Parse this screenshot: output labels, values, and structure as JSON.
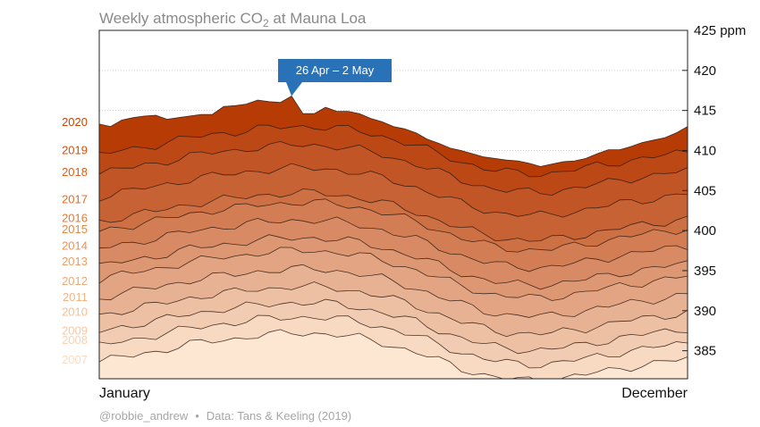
{
  "colors": {
    "callout": "#2a72b8",
    "grid": "#cfcfcf",
    "frame": "#222222",
    "title": "#8a8a8a",
    "credit": "#a6a6a6",
    "band_light": "#fde6d2",
    "band_dark": "#b73b05"
  },
  "credit": {
    "author": "@robbie_andrew",
    "separator": "•",
    "source": "Data: Tans & Keeling (2019)"
  },
  "callout": {
    "label": "26 Apr – 2 May",
    "week": 17,
    "value": 416.8
  },
  "chart_data": {
    "type": "area",
    "title_prefix": "Weekly atmospheric CO",
    "title_sub": "2",
    "title_suffix": " at Mauna Loa",
    "x_start_label": "January",
    "x_end_label": "December",
    "ylim": [
      381.5,
      425
    ],
    "y_ticks": [
      {
        "value": 425,
        "label": "425 ppm"
      },
      {
        "value": 420,
        "label": "420"
      },
      {
        "value": 415,
        "label": "415"
      },
      {
        "value": 410,
        "label": "410"
      },
      {
        "value": 405,
        "label": "405"
      },
      {
        "value": 400,
        "label": "400"
      },
      {
        "value": 395,
        "label": "395"
      },
      {
        "value": 390,
        "label": "390"
      },
      {
        "value": 385,
        "label": "385"
      }
    ],
    "grid": true,
    "weeks": 53,
    "series": [
      {
        "name": "2007",
        "label_color": "#f9dcc3",
        "offset": 383.4
      },
      {
        "name": "2008",
        "label_color": "#f7d2b4",
        "offset": 385.4
      },
      {
        "name": "2009",
        "label_color": "#f6c8a4",
        "offset": 387.2
      },
      {
        "name": "2010",
        "label_color": "#f4bf95",
        "offset": 389.2
      },
      {
        "name": "2011",
        "label_color": "#f3b586",
        "offset": 391.4
      },
      {
        "name": "2012",
        "label_color": "#f1a873",
        "offset": 393.7
      },
      {
        "name": "2013",
        "label_color": "#ef9e62",
        "offset": 395.3
      },
      {
        "name": "2014",
        "label_color": "#ec9151",
        "offset": 397.5
      },
      {
        "name": "2015",
        "label_color": "#e98642",
        "offset": 399.7
      },
      {
        "name": "2016",
        "label_color": "#e67a33",
        "offset": 400.9
      },
      {
        "name": "2017",
        "label_color": "#e26c24",
        "offset": 404.0
      },
      {
        "name": "2018",
        "label_color": "#dc5f18",
        "offset": 406.9
      },
      {
        "name": "2019",
        "label_color": "#d2500e",
        "offset": 409.2
      },
      {
        "name": "2020",
        "label_color": "#c64506",
        "offset": 410.9
      }
    ],
    "seasonal_cycle": [
      0.2,
      0.5,
      0.8,
      1.0,
      1.3,
      1.5,
      1.8,
      2.1,
      2.4,
      2.6,
      2.8,
      3.0,
      3.1,
      3.3,
      3.5,
      3.6,
      3.7,
      3.8,
      3.8,
      3.8,
      3.7,
      3.6,
      3.4,
      3.2,
      2.9,
      2.6,
      2.2,
      1.8,
      1.4,
      0.9,
      0.4,
      -0.1,
      -0.6,
      -1.0,
      -1.4,
      -1.7,
      -1.9,
      -2.0,
      -2.1,
      -2.1,
      -2.0,
      -1.8,
      -1.6,
      -1.4,
      -1.1,
      -0.9,
      -0.6,
      -0.4,
      -0.2,
      0.0,
      0.2,
      0.4,
      0.6
    ],
    "year_2020_weekly": [
      413.3,
      413.0,
      413.8,
      414.1,
      414.3,
      414.4,
      413.9,
      414.1,
      414.3,
      414.5,
      414.5,
      415.5,
      415.6,
      415.8,
      416.3,
      416.1,
      416.0,
      416.8,
      414.6,
      414.6,
      415.4,
      414.9,
      414.9,
      414.6,
      414.0,
      413.6,
      413.0,
      412.7,
      412.2,
      411.4,
      410.9,
      410.3,
      410.0,
      409.6,
      409.2,
      409.0,
      408.8,
      408.7,
      408.4,
      408.0,
      408.3,
      408.6,
      408.7,
      409.0,
      409.6,
      410.1,
      410.1,
      410.5,
      411.0,
      411.3,
      411.6,
      412.2,
      413.0
    ]
  }
}
